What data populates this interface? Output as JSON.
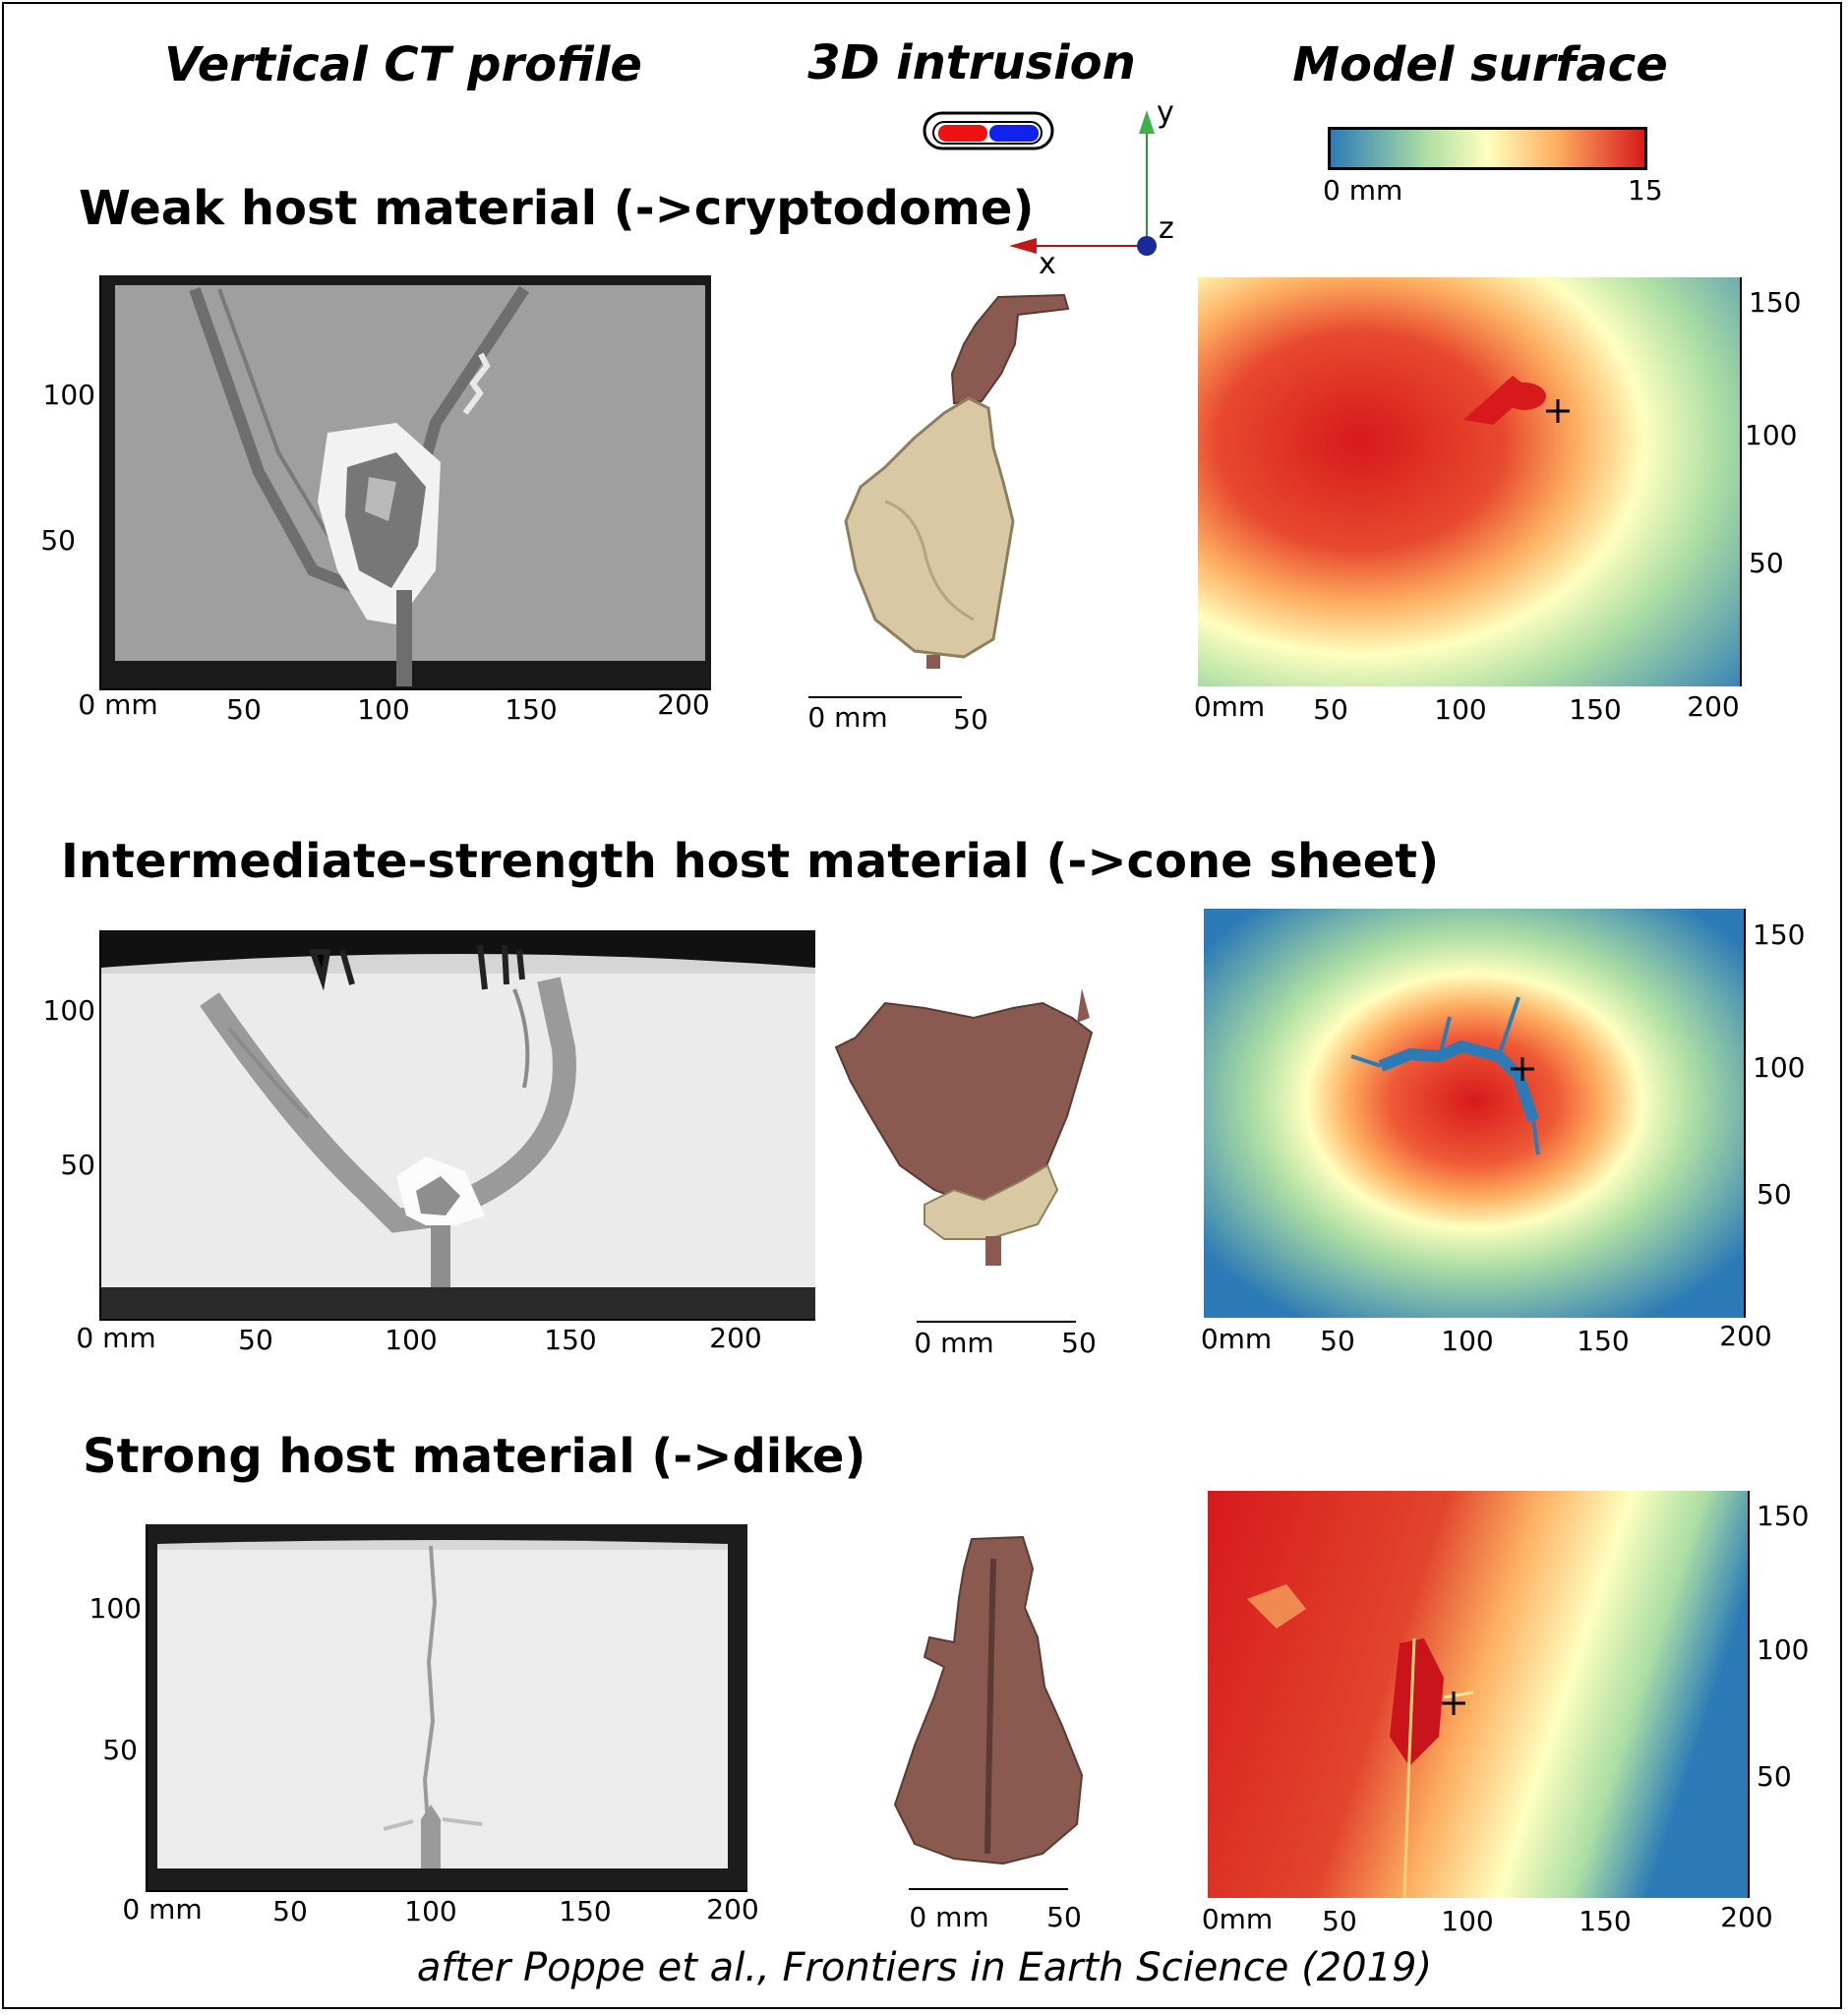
{
  "columns": {
    "ct": "Vertical CT profile",
    "intrusion": "3D intrusion",
    "surface": "Model surface"
  },
  "colorbar": {
    "min_label": "0 mm",
    "max_label": "15",
    "colors": [
      "#2c7bb6",
      "#abdda4",
      "#ffffbf",
      "#fdae61",
      "#d7191c"
    ]
  },
  "coord_axes": {
    "y": "y",
    "z": "z",
    "x": "x"
  },
  "rows": [
    {
      "title": "Weak host material (->cryptodome)",
      "ct_x_ticks": [
        "0 mm",
        "50",
        "100",
        "150",
        "200"
      ],
      "ct_y_ticks": [
        "100",
        "50"
      ],
      "intrusion_scale": [
        "0 mm",
        "50"
      ],
      "surface_x_ticks": [
        "0mm",
        "50",
        "100",
        "150",
        "200"
      ],
      "surface_y_ticks": [
        "150",
        "100",
        "50"
      ]
    },
    {
      "title": "Intermediate-strength host material (->cone sheet)",
      "ct_x_ticks": [
        "0 mm",
        "50",
        "100",
        "150",
        "200"
      ],
      "ct_y_ticks": [
        "100",
        "50"
      ],
      "intrusion_scale": [
        "0 mm",
        "50"
      ],
      "surface_x_ticks": [
        "0mm",
        "50",
        "100",
        "150",
        "200"
      ],
      "surface_y_ticks": [
        "150",
        "100",
        "50"
      ]
    },
    {
      "title": "Strong host material (->dike)",
      "ct_x_ticks": [
        "0 mm",
        "50",
        "100",
        "150",
        "200"
      ],
      "ct_y_ticks": [
        "100",
        "50"
      ],
      "intrusion_scale": [
        "0 mm",
        "50"
      ],
      "surface_x_ticks": [
        "0mm",
        "50",
        "100",
        "150",
        "200"
      ],
      "surface_y_ticks": [
        "150",
        "100",
        "50"
      ]
    }
  ],
  "citation": "after Poppe et al., Frontiers in Earth Science (2019)"
}
